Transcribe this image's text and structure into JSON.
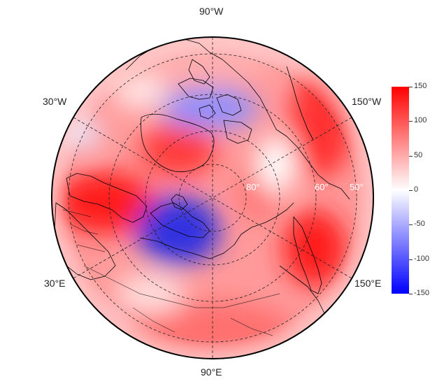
{
  "map": {
    "projection": "north-polar-stereographic",
    "field_colors": {
      "positive": "#ff0000",
      "zero": "#ffffff",
      "negative": "#0000ff"
    },
    "graticule": {
      "style": "dashed",
      "color": "#222222"
    },
    "coastline_color": "#000000",
    "lon_labels": [
      {
        "id": "90w",
        "text": "90°W"
      },
      {
        "id": "30w",
        "text": "30°W"
      },
      {
        "id": "150w",
        "text": "150°W"
      },
      {
        "id": "30e",
        "text": "30°E"
      },
      {
        "id": "150e",
        "text": "150°E"
      },
      {
        "id": "90e",
        "text": "90°E"
      }
    ],
    "lat_labels": [
      {
        "id": "80",
        "text": "80°"
      },
      {
        "id": "60",
        "text": "60°"
      },
      {
        "id": "50",
        "text": "50°"
      }
    ]
  },
  "colorbar": {
    "min": -150,
    "max": 150,
    "ticks": [
      "150",
      "100",
      "50",
      "0",
      "-50",
      "-100",
      "-150"
    ],
    "tick_values": [
      150,
      100,
      50,
      0,
      -50,
      -100,
      -150
    ]
  }
}
